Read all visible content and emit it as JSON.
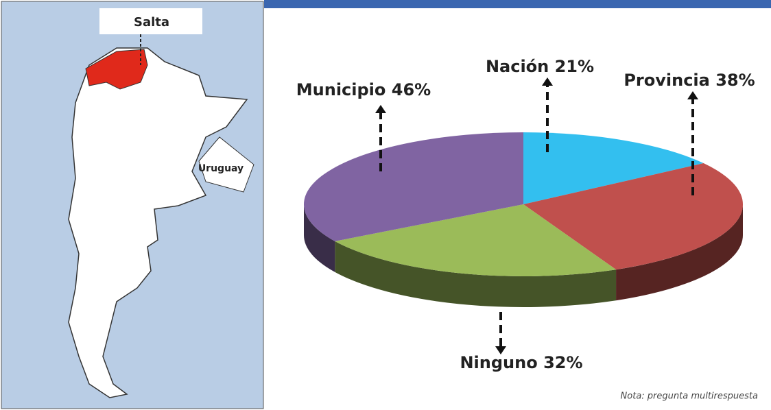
{
  "map": {
    "labels": [
      "Salta",
      "Uruguay"
    ]
  },
  "chart_data": {
    "type": "pie",
    "categories": [
      "Nación",
      "Provincia",
      "Ninguno",
      "Municipio"
    ],
    "values": [
      21,
      38,
      32,
      46
    ],
    "value_labels": [
      "21%",
      "38%",
      "32%",
      "46%"
    ],
    "colors": [
      "#33bfef",
      "#c0504d",
      "#9bbb59",
      "#8064a2"
    ],
    "note": "Nota: pregunta multirespuesta"
  }
}
